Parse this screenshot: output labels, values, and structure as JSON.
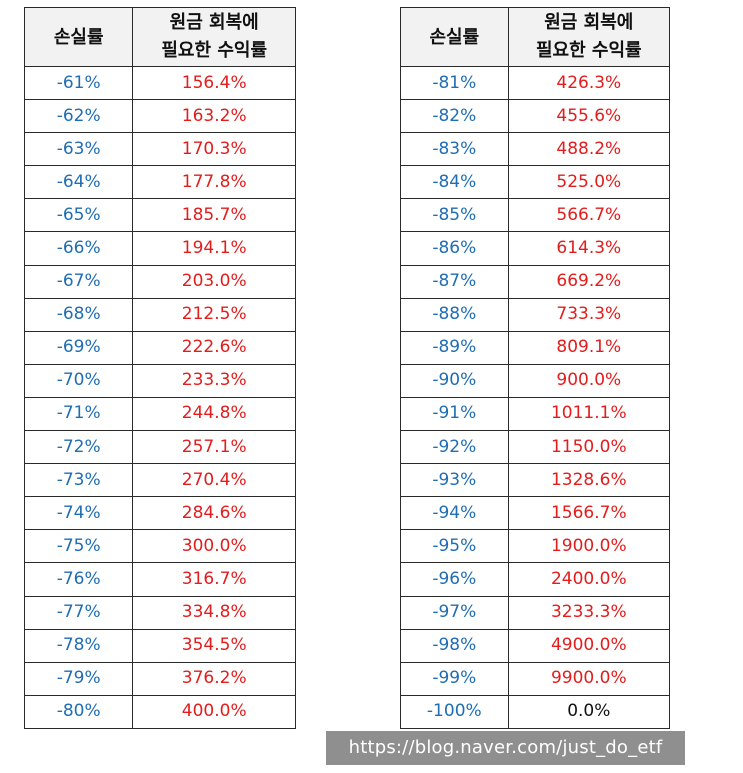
{
  "headers": {
    "loss_rate": "손실률",
    "required_return_line1": "원금 회복에",
    "required_return_line2": "필요한 수익률"
  },
  "left_table": [
    {
      "loss": "-61%",
      "gain": "156.4%"
    },
    {
      "loss": "-62%",
      "gain": "163.2%"
    },
    {
      "loss": "-63%",
      "gain": "170.3%"
    },
    {
      "loss": "-64%",
      "gain": "177.8%"
    },
    {
      "loss": "-65%",
      "gain": "185.7%"
    },
    {
      "loss": "-66%",
      "gain": "194.1%"
    },
    {
      "loss": "-67%",
      "gain": "203.0%"
    },
    {
      "loss": "-68%",
      "gain": "212.5%"
    },
    {
      "loss": "-69%",
      "gain": "222.6%"
    },
    {
      "loss": "-70%",
      "gain": "233.3%"
    },
    {
      "loss": "-71%",
      "gain": "244.8%"
    },
    {
      "loss": "-72%",
      "gain": "257.1%"
    },
    {
      "loss": "-73%",
      "gain": "270.4%"
    },
    {
      "loss": "-74%",
      "gain": "284.6%"
    },
    {
      "loss": "-75%",
      "gain": "300.0%"
    },
    {
      "loss": "-76%",
      "gain": "316.7%"
    },
    {
      "loss": "-77%",
      "gain": "334.8%"
    },
    {
      "loss": "-78%",
      "gain": "354.5%"
    },
    {
      "loss": "-79%",
      "gain": "376.2%"
    },
    {
      "loss": "-80%",
      "gain": "400.0%"
    }
  ],
  "right_table": [
    {
      "loss": "-81%",
      "gain": "426.3%"
    },
    {
      "loss": "-82%",
      "gain": "455.6%"
    },
    {
      "loss": "-83%",
      "gain": "488.2%"
    },
    {
      "loss": "-84%",
      "gain": "525.0%"
    },
    {
      "loss": "-85%",
      "gain": "566.7%"
    },
    {
      "loss": "-86%",
      "gain": "614.3%"
    },
    {
      "loss": "-87%",
      "gain": "669.2%"
    },
    {
      "loss": "-88%",
      "gain": "733.3%"
    },
    {
      "loss": "-89%",
      "gain": "809.1%"
    },
    {
      "loss": "-90%",
      "gain": "900.0%"
    },
    {
      "loss": "-91%",
      "gain": "1011.1%"
    },
    {
      "loss": "-92%",
      "gain": "1150.0%"
    },
    {
      "loss": "-93%",
      "gain": "1328.6%"
    },
    {
      "loss": "-94%",
      "gain": "1566.7%"
    },
    {
      "loss": "-95%",
      "gain": "1900.0%"
    },
    {
      "loss": "-96%",
      "gain": "2400.0%"
    },
    {
      "loss": "-97%",
      "gain": "3233.3%"
    },
    {
      "loss": "-98%",
      "gain": "4900.0%"
    },
    {
      "loss": "-99%",
      "gain": "9900.0%"
    },
    {
      "loss": "-100%",
      "gain": "0.0%"
    }
  ],
  "watermark": "https://blog.naver.com/just_do_etf",
  "colors": {
    "loss_text": "#1f6db3",
    "gain_text": "#e31c1c",
    "header_bg": "#f2f2f2",
    "watermark_bg": "#8f8f8f"
  }
}
